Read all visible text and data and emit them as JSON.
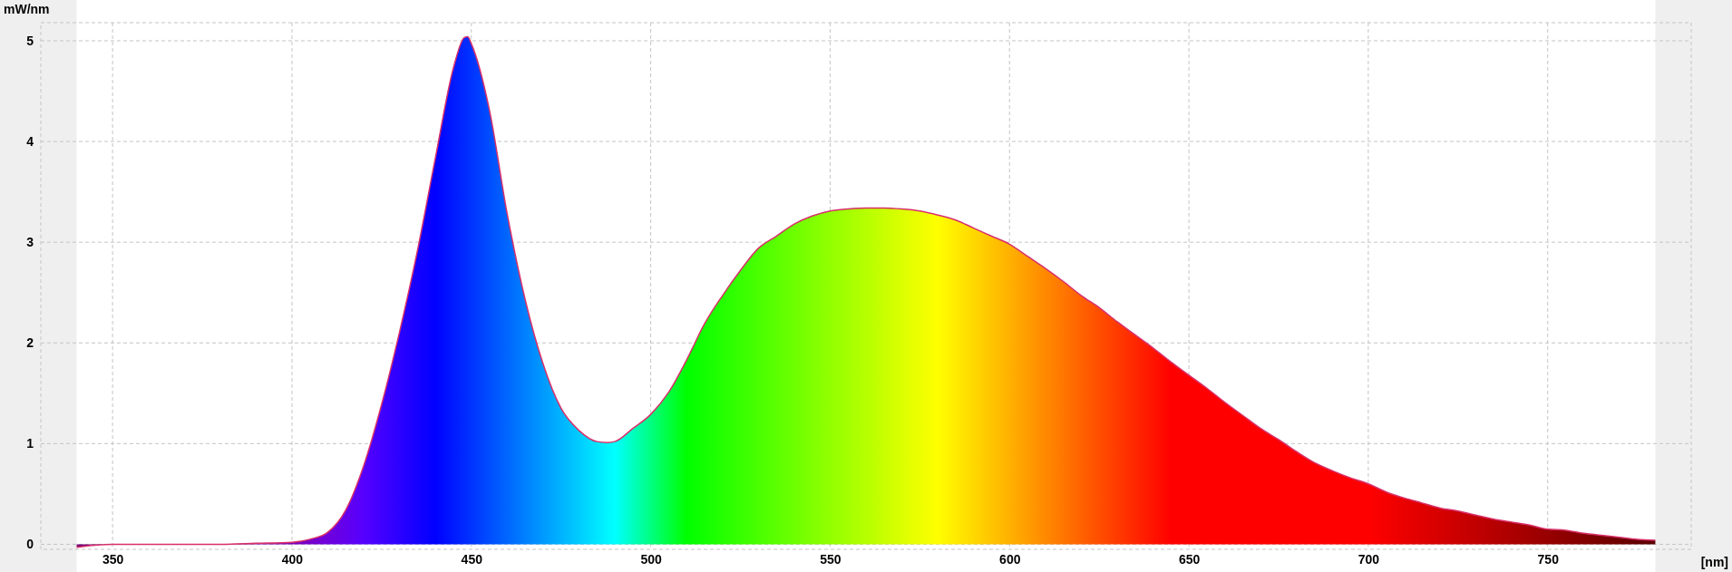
{
  "chart_data": {
    "type": "area",
    "xlabel": "[nm]",
    "ylabel": "mW/nm",
    "xlim": [
      330,
      790
    ],
    "xticks": [
      350,
      400,
      450,
      500,
      550,
      600,
      650,
      700,
      750
    ],
    "ylim": [
      -0.05,
      5.18
    ],
    "yticks": [
      0,
      1,
      2,
      3,
      4,
      5
    ],
    "grid": true,
    "series": [
      {
        "color": "#d8306a",
        "x": [
          340,
          345,
          350,
          360,
          370,
          380,
          390,
          400,
          405,
          410,
          415,
          420,
          425,
          430,
          435,
          440,
          445,
          448,
          449,
          450,
          455,
          460,
          465,
          470,
          475,
          480,
          485,
          488,
          490,
          495,
          500,
          505,
          510,
          515,
          520,
          525,
          530,
          535,
          540,
          545,
          550,
          555,
          560,
          565,
          570,
          575,
          580,
          585,
          590,
          595,
          600,
          605,
          610,
          615,
          620,
          625,
          630,
          635,
          640,
          645,
          650,
          655,
          660,
          665,
          670,
          675,
          680,
          685,
          690,
          695,
          700,
          705,
          710,
          715,
          720,
          725,
          730,
          735,
          740,
          745,
          750,
          755,
          760,
          765,
          770,
          775,
          780
        ],
        "values": [
          -0.03,
          -0.01,
          0,
          0,
          0,
          0,
          0.01,
          0.02,
          0.05,
          0.12,
          0.34,
          0.78,
          1.39,
          2.11,
          2.92,
          3.84,
          4.73,
          5.03,
          5.04,
          4.97,
          4.32,
          3.28,
          2.43,
          1.79,
          1.35,
          1.13,
          1.02,
          1.01,
          1.02,
          1.15,
          1.29,
          1.51,
          1.83,
          2.19,
          2.47,
          2.72,
          2.94,
          3.06,
          3.18,
          3.26,
          3.31,
          3.33,
          3.34,
          3.34,
          3.33,
          3.31,
          3.27,
          3.22,
          3.14,
          3.06,
          2.98,
          2.86,
          2.74,
          2.61,
          2.47,
          2.35,
          2.21,
          2.08,
          1.95,
          1.81,
          1.68,
          1.55,
          1.41,
          1.28,
          1.15,
          1.04,
          0.92,
          0.81,
          0.73,
          0.66,
          0.6,
          0.52,
          0.46,
          0.41,
          0.36,
          0.33,
          0.29,
          0.25,
          0.22,
          0.19,
          0.15,
          0.14,
          0.11,
          0.09,
          0.07,
          0.05,
          0.04
        ]
      }
    ]
  }
}
